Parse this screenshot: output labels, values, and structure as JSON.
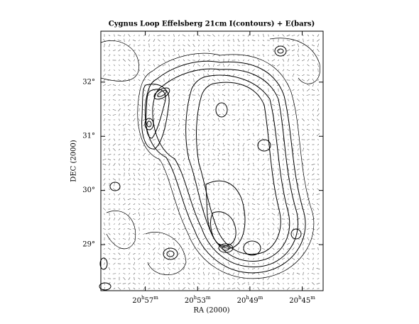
{
  "chart_data": {
    "type": "contour",
    "title": "Cygnus Loop Effelsberg 21cm I(contours) + E(bars)",
    "x_label": "RA (2000)",
    "y_label": "DEC (2000)",
    "xlim": [
      60.4,
      43.4
    ],
    "xticks": [
      {
        "value": 57,
        "label": "20h57m"
      },
      {
        "value": 53,
        "label": "20h53m"
      },
      {
        "value": 49,
        "label": "20h49m"
      },
      {
        "value": 45,
        "label": "20h45m"
      }
    ],
    "ylim": [
      28.15,
      32.94
    ],
    "yticks": [
      {
        "value": 29,
        "label": "29°"
      },
      {
        "value": 30,
        "label": "30°"
      },
      {
        "value": 31,
        "label": "31°"
      },
      {
        "value": 32,
        "label": "32°"
      }
    ]
  }
}
